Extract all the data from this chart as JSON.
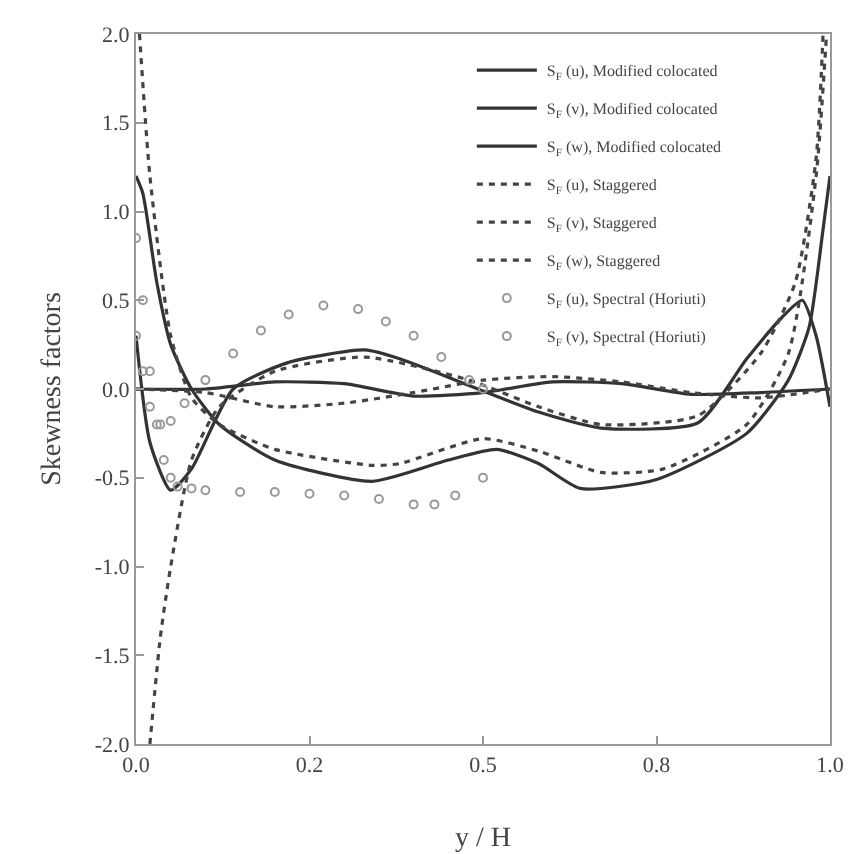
{
  "chart_data": {
    "type": "line",
    "xlabel": "y / H",
    "ylabel": "Skewness factors",
    "xlim": [
      0,
      1
    ],
    "ylim": [
      -2,
      2
    ],
    "xticks": [
      {
        "value": 0,
        "label": "0.0"
      },
      {
        "value": 0.25,
        "label": "0.2"
      },
      {
        "value": 0.5,
        "label": "0.5"
      },
      {
        "value": 0.75,
        "label": "0.8"
      },
      {
        "value": 1,
        "label": "1.0"
      }
    ],
    "yticks": [
      {
        "value": -2,
        "label": "-2.0"
      },
      {
        "value": -1.5,
        "label": "-1.5"
      },
      {
        "value": -1,
        "label": "-1.0"
      },
      {
        "value": -0.5,
        "label": "-0.5"
      },
      {
        "value": 0,
        "label": "0.0"
      },
      {
        "value": 0.5,
        "label": "0.5"
      },
      {
        "value": 1,
        "label": "1.0"
      },
      {
        "value": 1.5,
        "label": "1.5"
      },
      {
        "value": 2,
        "label": "2.0"
      }
    ],
    "grid": false,
    "legend": "top right",
    "series": [
      {
        "name": "S$_{F}$ (u), Modified colocated",
        "color": "#333333",
        "line_style": "solid",
        "x": [
          0,
          0.01,
          0.03,
          0.05,
          0.08,
          0.12,
          0.2,
          0.34,
          0.45,
          0.52,
          0.58,
          0.64,
          0.75,
          0.88,
          0.94,
          0.97,
          0.99,
          1
        ],
        "values": [
          1.2,
          1.1,
          0.6,
          0.25,
          0,
          -0.2,
          -0.4,
          -0.52,
          -0.4,
          -0.34,
          -0.42,
          -0.56,
          -0.51,
          -0.25,
          0.05,
          0.35,
          0.9,
          1.2
        ]
      },
      {
        "name": "S$_{F}$ (v), Modified colocated",
        "color": "#333333",
        "line_style": "solid",
        "x": [
          0,
          0.02,
          0.05,
          0.08,
          0.14,
          0.22,
          0.33,
          0.38,
          0.48,
          0.58,
          0.67,
          0.81,
          0.88,
          0.93,
          0.96,
          0.98,
          1
        ],
        "values": [
          0.3,
          -0.3,
          -0.57,
          -0.45,
          0,
          0.15,
          0.22,
          0.17,
          0.02,
          -0.13,
          -0.22,
          -0.19,
          0.17,
          0.4,
          0.5,
          0.3,
          -0.1
        ]
      },
      {
        "name": "S$_{F}$ (w), Modified colocated",
        "color": "#333333",
        "line_style": "solid",
        "x": [
          0,
          0.1,
          0.2,
          0.3,
          0.4,
          0.5,
          0.6,
          0.7,
          0.8,
          0.9,
          1
        ],
        "values": [
          0,
          0,
          0.04,
          0.03,
          -0.04,
          -0.02,
          0.04,
          0.03,
          -0.03,
          -0.02,
          0
        ]
      },
      {
        "name": "S$_{F}$ (u), Staggered",
        "color": "#444444",
        "line_style": "dotted",
        "x": [
          0.005,
          0.02,
          0.05,
          0.08,
          0.12,
          0.2,
          0.34,
          0.38,
          0.5,
          0.58,
          0.67,
          0.76,
          0.88,
          0.94,
          0.98,
          0.995
        ],
        "values": [
          2,
          1.2,
          0.3,
          -0.05,
          -0.2,
          -0.34,
          -0.43,
          -0.42,
          -0.28,
          -0.35,
          -0.47,
          -0.45,
          -0.2,
          0.2,
          1.2,
          2
        ]
      },
      {
        "name": "S$_{F}$ (v), Staggered",
        "color": "#444444",
        "line_style": "dotted",
        "x": [
          0.02,
          0.035,
          0.05,
          0.08,
          0.12,
          0.2,
          0.33,
          0.48,
          0.58,
          0.67,
          0.81,
          0.9,
          0.95,
          0.98,
          0.99
        ],
        "values": [
          -2,
          -1.4,
          -1,
          -0.4,
          -0.1,
          0.1,
          0.18,
          0.05,
          -0.1,
          -0.2,
          -0.15,
          0.2,
          0.6,
          1.3,
          2
        ]
      },
      {
        "name": "S$_{F}$ (w), Staggered",
        "color": "#444444",
        "line_style": "dotted",
        "x": [
          0,
          0.1,
          0.2,
          0.3,
          0.4,
          0.5,
          0.6,
          0.7,
          0.8,
          0.9,
          1
        ],
        "values": [
          0,
          -0.02,
          -0.1,
          -0.08,
          -0.02,
          0.05,
          0.07,
          0.04,
          -0.02,
          -0.05,
          0
        ]
      },
      {
        "name": "S$_{F}$ (u), Spectral (Horiuti)",
        "type": "scatter",
        "marker": "circle",
        "color": "#999999",
        "x": [
          0,
          0.01,
          0.02,
          0.03,
          0.04,
          0.05,
          0.06,
          0.08,
          0.1,
          0.15,
          0.2,
          0.25,
          0.3,
          0.35,
          0.4,
          0.43,
          0.46,
          0.5
        ],
        "values": [
          0.85,
          0.5,
          0.1,
          -0.2,
          -0.4,
          -0.5,
          -0.55,
          -0.56,
          -0.57,
          -0.58,
          -0.58,
          -0.59,
          -0.6,
          -0.62,
          -0.65,
          -0.65,
          -0.6,
          -0.5
        ]
      },
      {
        "name": "S$_{F}$ (v), Spectral (Horiuti)",
        "type": "scatter",
        "marker": "circle",
        "color": "#999999",
        "x": [
          0,
          0.01,
          0.02,
          0.035,
          0.05,
          0.07,
          0.1,
          0.14,
          0.18,
          0.22,
          0.27,
          0.32,
          0.36,
          0.4,
          0.44,
          0.48,
          0.5
        ],
        "values": [
          0.3,
          0.1,
          -0.1,
          -0.2,
          -0.18,
          -0.08,
          0.05,
          0.2,
          0.33,
          0.42,
          0.47,
          0.45,
          0.38,
          0.3,
          0.18,
          0.05,
          0
        ]
      }
    ]
  }
}
